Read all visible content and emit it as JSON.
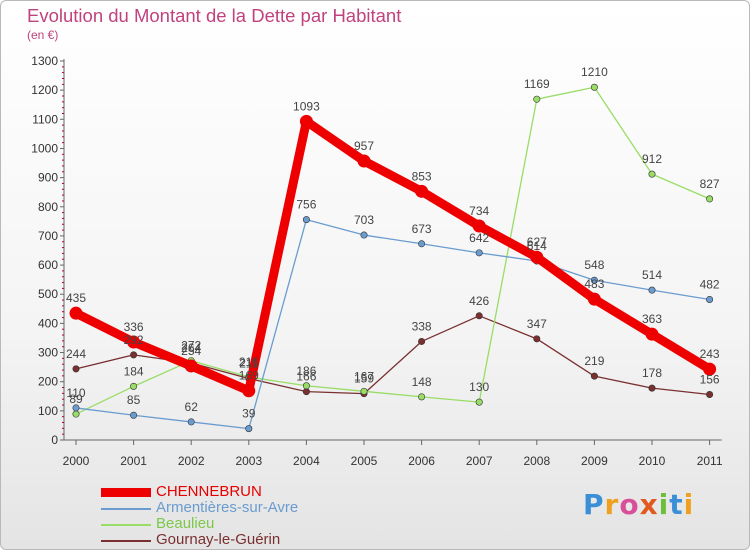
{
  "header": {
    "title": "Evolution du Montant de la Dette par Habitant",
    "unit": "(en €)"
  },
  "logo": {
    "text": "Proxiti"
  },
  "chart_data": {
    "type": "line",
    "x": [
      "2000",
      "2001",
      "2002",
      "2003",
      "2004",
      "2005",
      "2006",
      "2007",
      "2008",
      "2009",
      "2010",
      "2011"
    ],
    "ylim": [
      0,
      1300
    ],
    "yticks": [
      0,
      100,
      200,
      300,
      400,
      500,
      600,
      700,
      800,
      900,
      1000,
      1100,
      1200,
      1300
    ],
    "grid": false,
    "legend_position": "bottom-left",
    "series": [
      {
        "name": "CHENNEBRUN",
        "color": "#ee0000",
        "values": [
          435,
          336,
          254,
          169,
          1093,
          957,
          853,
          734,
          627,
          483,
          363,
          243
        ]
      },
      {
        "name": "Armentières-sur-Avre",
        "color": "#6a9ccf",
        "values": [
          110,
          85,
          62,
          39,
          756,
          703,
          673,
          642,
          614,
          548,
          514,
          482
        ]
      },
      {
        "name": "Beaulieu",
        "color": "#99dd66",
        "values": [
          89,
          184,
          272,
          216,
          186,
          167,
          148,
          130,
          1169,
          1210,
          912,
          827
        ]
      },
      {
        "name": "Gournay-le-Guérin",
        "color": "#7a3030",
        "values": [
          244,
          292,
          264,
          211,
          166,
          159,
          338,
          426,
          347,
          219,
          178,
          156
        ]
      }
    ]
  }
}
